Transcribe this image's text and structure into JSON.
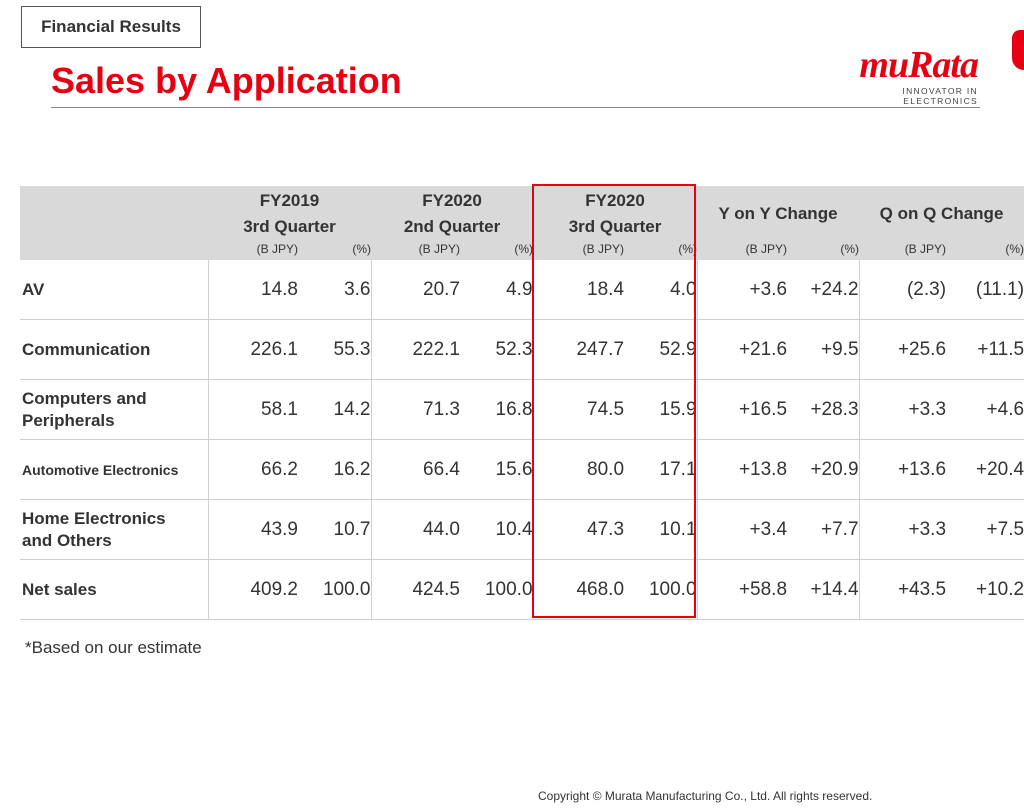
{
  "header": {
    "tag": "Financial Results",
    "title": "Sales by Application",
    "logo_word": "muRata",
    "logo_tagline": "INNOVATOR IN ELECTRONICS"
  },
  "table": {
    "periods": [
      {
        "year": "FY2019",
        "quarter": "3rd Quarter"
      },
      {
        "year": "FY2020",
        "quarter": "2nd Quarter"
      },
      {
        "year": "FY2020",
        "quarter": "3rd Quarter"
      }
    ],
    "changes": [
      "Y on Y Change",
      "Q on Q Change"
    ],
    "unit_labels": [
      "(B JPY)",
      "(%)",
      "(B JPY)",
      "(%)",
      "(B JPY)",
      "(%)",
      "(B JPY)",
      "(%)",
      "(B JPY)",
      "(%)"
    ],
    "rows": [
      {
        "label": "AV",
        "values": [
          "14.8",
          "3.6",
          "20.7",
          "4.9",
          "18.4",
          "4.0",
          "+3.6",
          "+24.2",
          "(2.3)",
          "(11.1)"
        ]
      },
      {
        "label": "Communication",
        "values": [
          "226.1",
          "55.3",
          "222.1",
          "52.3",
          "247.7",
          "52.9",
          "+21.6",
          "+9.5",
          "+25.6",
          "+11.5"
        ]
      },
      {
        "label_lines": [
          "Computers and",
          "Peripherals"
        ],
        "values": [
          "58.1",
          "14.2",
          "71.3",
          "16.8",
          "74.5",
          "15.9",
          "+16.5",
          "+28.3",
          "+3.3",
          "+4.6"
        ]
      },
      {
        "label": "Automotive Electronics",
        "values": [
          "66.2",
          "16.2",
          "66.4",
          "15.6",
          "80.0",
          "17.1",
          "+13.8",
          "+20.9",
          "+13.6",
          "+20.4"
        ]
      },
      {
        "label_lines": [
          "Home Electronics",
          "and Others"
        ],
        "values": [
          "43.9",
          "10.7",
          "44.0",
          "10.4",
          "47.3",
          "10.1",
          "+3.4",
          "+7.7",
          "+3.3",
          "+7.5"
        ]
      },
      {
        "label": "Net sales",
        "values": [
          "409.2",
          "100.0",
          "424.5",
          "100.0",
          "468.0",
          "100.0",
          "+58.8",
          "+14.4",
          "+43.5",
          "+10.2"
        ]
      }
    ]
  },
  "footnote": "*Based on our estimate",
  "copyright": "Copyright © Murata Manufacturing Co., Ltd. All rights reserved.",
  "colors": {
    "accent_red": "#e60012",
    "header_gray": "#d9d9d9",
    "text": "#333333"
  }
}
